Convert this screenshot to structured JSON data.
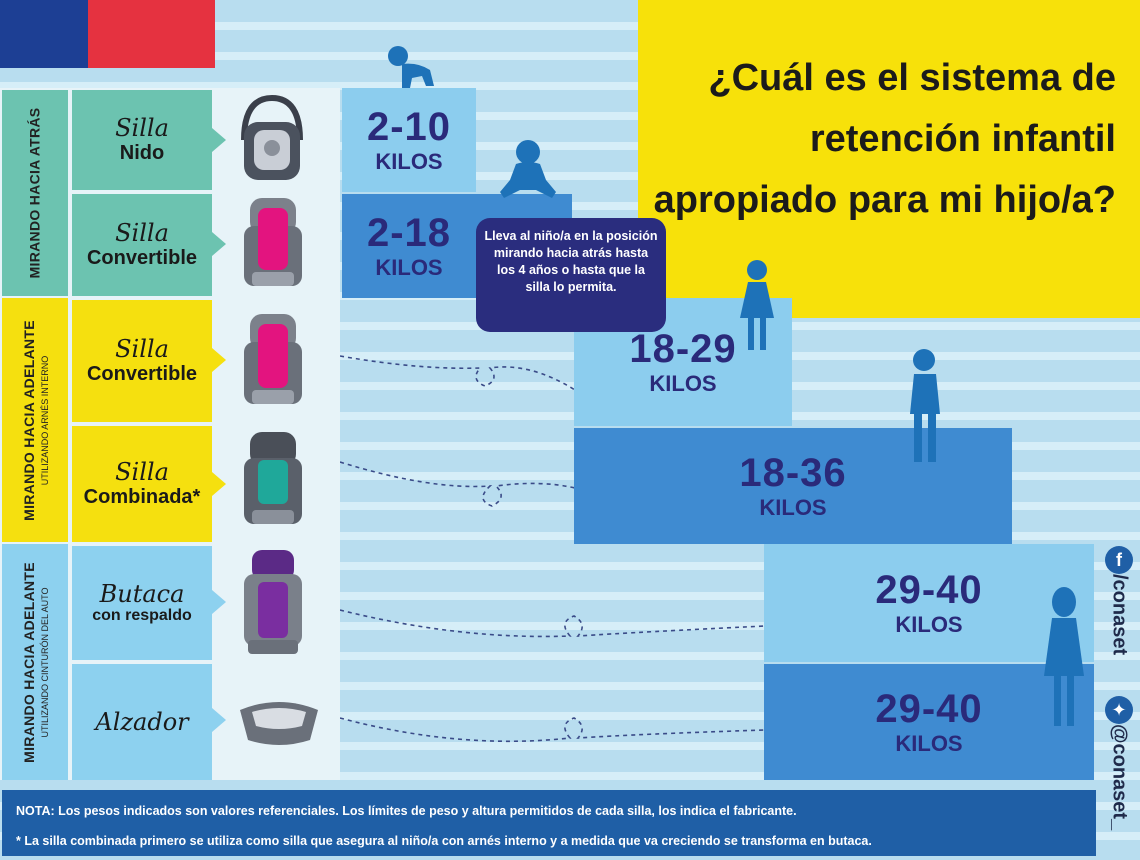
{
  "title": "¿Cuál es el sistema de retención infantil apropiado para mi hijo/a?",
  "groups": [
    {
      "main": "MIRANDO HACIA ATRÁS",
      "sub": ""
    },
    {
      "main": "MIRANDO HACIA ADELANTE",
      "sub": "UTILIZANDO ARNÉS INTERNO"
    },
    {
      "main": "MIRANDO HACIA ADELANTE",
      "sub": "UTILIZANDO CINTURÓN DEL AUTO"
    }
  ],
  "seats": [
    {
      "script": "Silla",
      "label": "Nido",
      "weight": "2-10",
      "unit": "KILOS"
    },
    {
      "script": "Silla",
      "label": "Convertible",
      "weight": "2-18",
      "unit": "KILOS"
    },
    {
      "script": "Silla",
      "label": "Convertible",
      "weight": "18-29",
      "unit": "KILOS"
    },
    {
      "script": "Silla",
      "label": "Combinada*",
      "weight": "18-36",
      "unit": "KILOS"
    },
    {
      "script": "Butaca",
      "label": "con respaldo",
      "weight": "29-40",
      "unit": "KILOS"
    },
    {
      "script": "Alzador",
      "label": "",
      "weight": "29-40",
      "unit": "KILOS"
    }
  ],
  "bubble": "Lleva al niño/a en la posición mirando hacia atrás hasta los 4 años o hasta que la silla lo permita.",
  "notes": [
    "NOTA: Los pesos indicados son valores referenciales. Los límites de peso y altura permitidos de cada silla, los indica el fabricante.",
    "* La silla combinada primero se utiliza como silla que asegura al niño/a con arnés interno y a medida que va creciendo se transforma en butaca."
  ],
  "social": {
    "facebook": "/conaset",
    "twitter": "@conaset_"
  },
  "colors": {
    "teal": "#6cc3b0",
    "yellow": "#f5e00f",
    "sky": "#8dd1ef",
    "navy": "#2a2d7e",
    "title_bg": "#f7e10a"
  }
}
